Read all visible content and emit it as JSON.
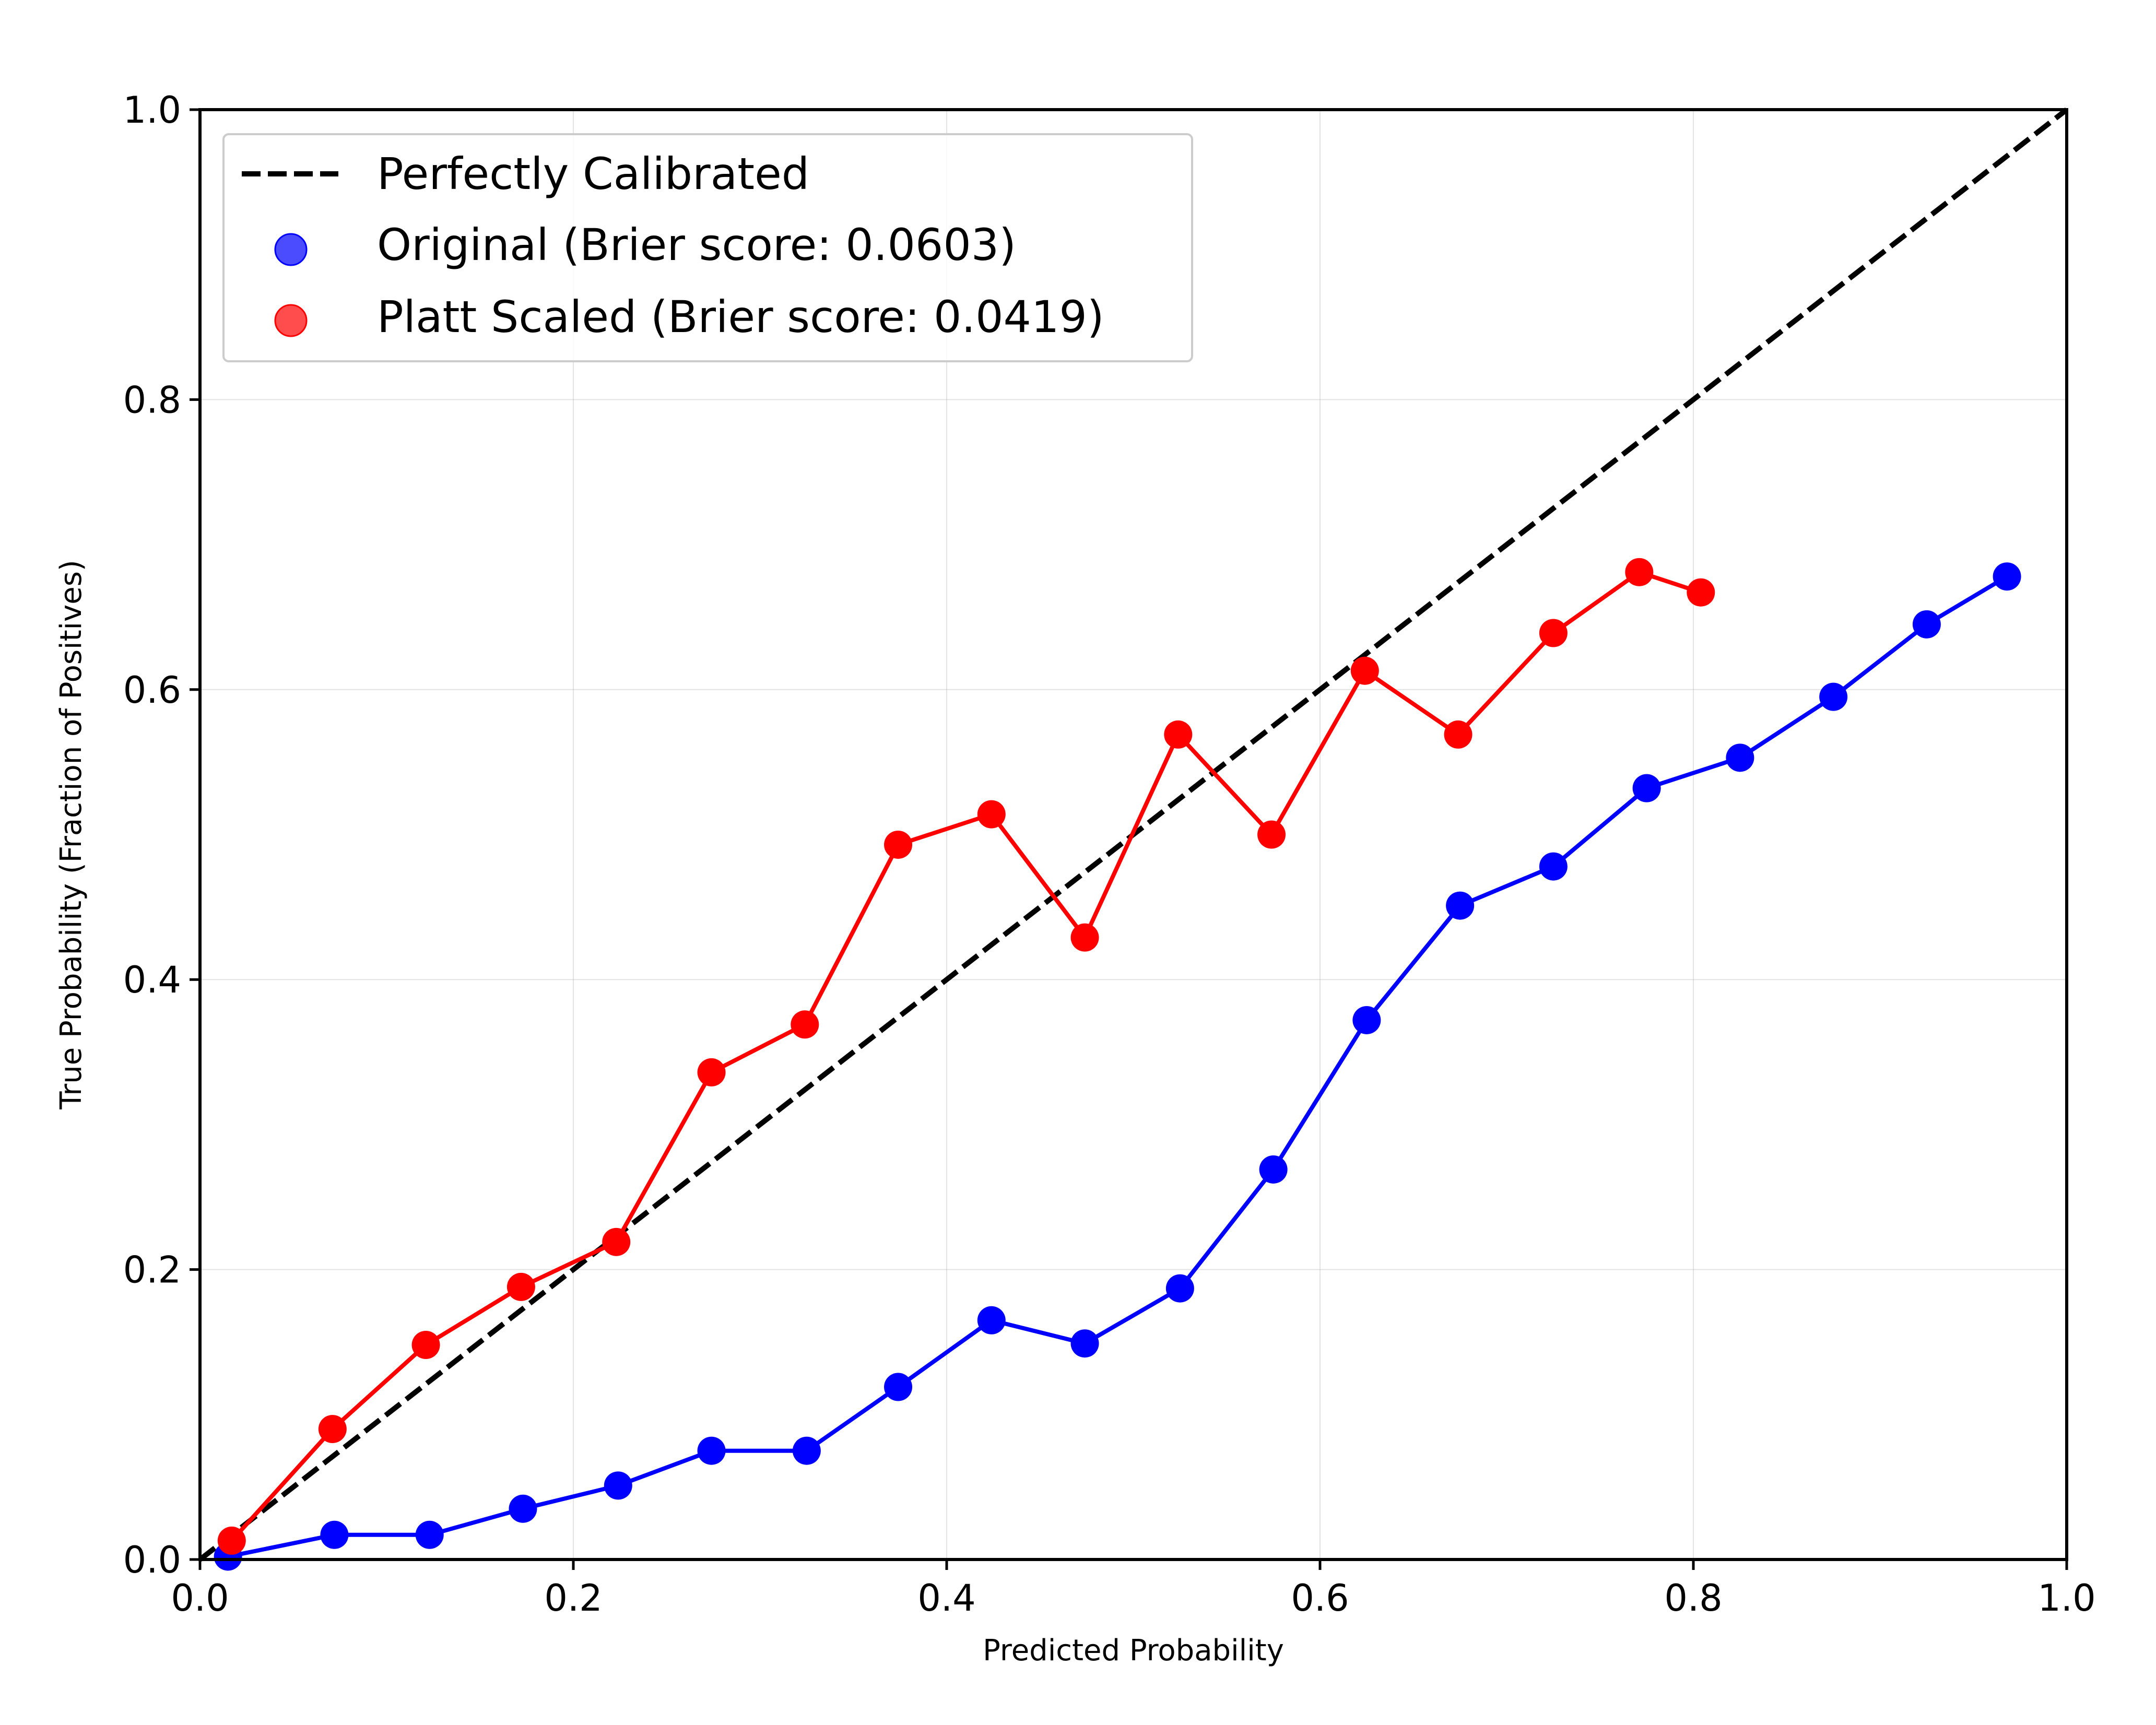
{
  "chart_data": {
    "type": "line",
    "xlabel": "Predicted Probability",
    "ylabel": "True Probability (Fraction of Positives)",
    "xlim": [
      0.0,
      1.0
    ],
    "ylim": [
      0.0,
      1.0
    ],
    "x_ticks": [
      "0.0",
      "0.2",
      "0.4",
      "0.6",
      "0.8",
      "1.0"
    ],
    "y_ticks": [
      "0.0",
      "0.2",
      "0.4",
      "0.6",
      "0.8",
      "1.0"
    ],
    "grid": true,
    "legend_position": "top-left",
    "reference_line": {
      "name": "Perfectly Calibrated",
      "x": [
        0.0,
        1.0
      ],
      "y": [
        0.0,
        1.0
      ],
      "color": "#000000",
      "style": "dashed"
    },
    "series": [
      {
        "name": "Original (Brier score: 0.0603)",
        "color": "#0000ff",
        "x": [
          0.015,
          0.072,
          0.123,
          0.173,
          0.224,
          0.274,
          0.325,
          0.374,
          0.424,
          0.474,
          0.525,
          0.575,
          0.625,
          0.675,
          0.725,
          0.775,
          0.825,
          0.875,
          0.925,
          0.968
        ],
        "y": [
          0.002,
          0.017,
          0.017,
          0.035,
          0.051,
          0.075,
          0.075,
          0.119,
          0.165,
          0.149,
          0.187,
          0.269,
          0.372,
          0.451,
          0.478,
          0.532,
          0.553,
          0.595,
          0.645,
          0.678
        ]
      },
      {
        "name": "Platt Scaled (Brier score: 0.0419)",
        "color": "#ff0000",
        "x": [
          0.017,
          0.071,
          0.121,
          0.172,
          0.223,
          0.274,
          0.324,
          0.374,
          0.424,
          0.474,
          0.524,
          0.574,
          0.624,
          0.674,
          0.725,
          0.771,
          0.804
        ],
        "y": [
          0.013,
          0.09,
          0.148,
          0.188,
          0.219,
          0.336,
          0.369,
          0.493,
          0.514,
          0.429,
          0.569,
          0.5,
          0.613,
          0.569,
          0.639,
          0.681,
          0.667
        ]
      }
    ]
  }
}
